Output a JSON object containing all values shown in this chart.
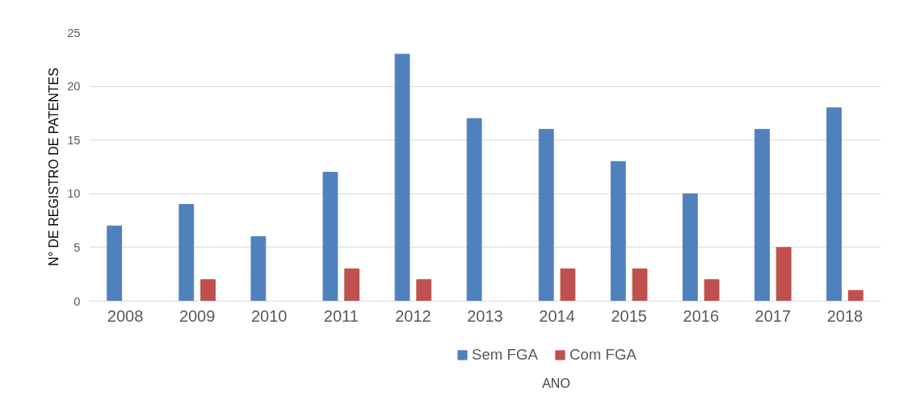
{
  "chart_data": {
    "type": "bar",
    "xlabel": "ANO",
    "ylabel": "N° DE REGISTRO DE PATENTES",
    "categories": [
      "2008",
      "2009",
      "2010",
      "2011",
      "2012",
      "2013",
      "2014",
      "2015",
      "2016",
      "2017",
      "2018"
    ],
    "series": [
      {
        "name": "Sem FGA",
        "color": "#4f81bd",
        "values": [
          7,
          9,
          6,
          12,
          23,
          17,
          16,
          13,
          10,
          16,
          18
        ]
      },
      {
        "name": "Com FGA",
        "color": "#c0504d",
        "values": [
          0,
          2,
          0,
          3,
          2,
          0,
          3,
          3,
          2,
          5,
          1
        ]
      }
    ],
    "ylim": [
      0,
      25
    ],
    "yticks": [
      0,
      5,
      10,
      15,
      20,
      25
    ],
    "grid": "y",
    "legend": "bottom"
  }
}
